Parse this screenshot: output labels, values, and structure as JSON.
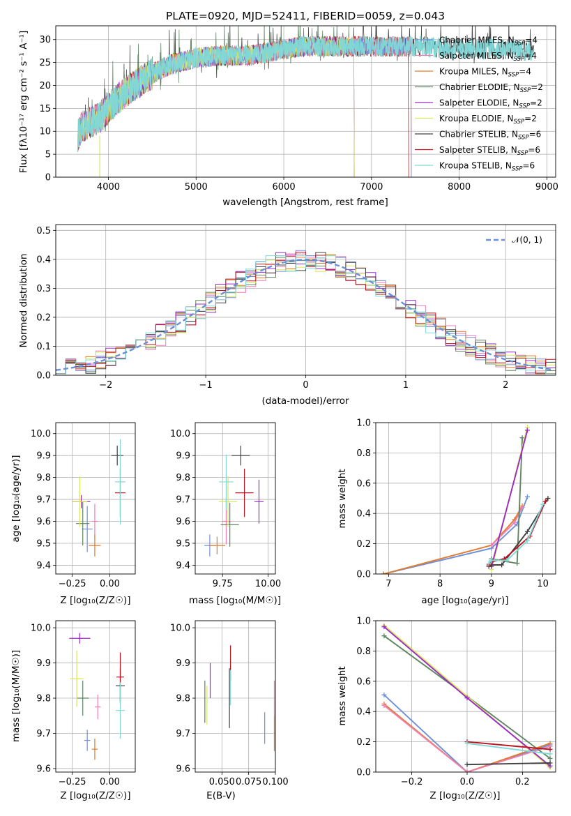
{
  "colors": {
    "chabrier_miles": "#6e8fdc",
    "salpeter_miles": "#f07fb3",
    "kroupa_miles": "#e07c2c",
    "chabrier_elodie": "#5e8661",
    "salpeter_elodie": "#9b2ac8",
    "kroupa_elodie": "#d8e85c",
    "chabrier_stelib": "#404040",
    "salpeter_stelib": "#c0121e",
    "kroupa_stelib": "#80d8d8",
    "normal": "#6b8fd8"
  },
  "chart_data": [
    {
      "type": "line",
      "title": "PLATE=0920, MJD=52411, FIBERID=0059, z=0.043",
      "xlabel": "wavelength [Angstrom, rest frame]",
      "ylabel": "Flux [fλ10⁻¹⁷ erg cm⁻² s⁻¹ A⁻¹]",
      "xlim": [
        3400,
        9100
      ],
      "ylim": [
        0,
        33
      ],
      "xticks": [
        "4000",
        "5000",
        "6000",
        "7000",
        "8000",
        "9000"
      ],
      "yticks": [
        "0",
        "5",
        "10",
        "15",
        "20",
        "25",
        "30"
      ],
      "legend_placement": "right",
      "series": [
        {
          "name": "Chabrier MILES, N_SSP=4",
          "color_key": "chabrier_miles",
          "x_range": [
            3650,
            7450
          ]
        },
        {
          "name": "Salpeter MILES, N_SSP=4",
          "color_key": "salpeter_miles",
          "x_range": [
            3650,
            7450
          ]
        },
        {
          "name": "Kroupa MILES, N_SSP=4",
          "color_key": "kroupa_miles",
          "x_range": [
            3650,
            7450
          ]
        },
        {
          "name": "Chabrier ELODIE, N_SSP=2",
          "color_key": "chabrier_elodie",
          "x_range": [
            3650,
            6800
          ]
        },
        {
          "name": "Salpeter ELODIE, N_SSP=2",
          "color_key": "salpeter_elodie",
          "x_range": [
            3650,
            6800
          ]
        },
        {
          "name": "Kroupa ELODIE, N_SSP=2",
          "color_key": "kroupa_elodie",
          "x_range": [
            3650,
            6800
          ]
        },
        {
          "name": "Chabrier STELIB, N_SSP=6",
          "color_key": "chabrier_stelib",
          "x_range": [
            3650,
            8850
          ]
        },
        {
          "name": "Salpeter STELIB, N_SSP=6",
          "color_key": "salpeter_stelib",
          "x_range": [
            3650,
            7420
          ]
        },
        {
          "name": "Kroupa STELIB, N_SSP=6",
          "color_key": "kroupa_stelib",
          "x_range": [
            3650,
            8850
          ]
        }
      ],
      "continuum": {
        "x": [
          3650,
          3700,
          3800,
          3900,
          4000,
          4100,
          4300,
          4500,
          4700,
          5000,
          5300,
          5600,
          5900,
          6200,
          6500,
          6800,
          7200,
          7600,
          8000,
          8400,
          8850
        ],
        "y": [
          9,
          11,
          12,
          13,
          15,
          17,
          20,
          22.5,
          24.5,
          26,
          26.5,
          26.5,
          27.5,
          28.5,
          28.5,
          28.5,
          28.5,
          28.5,
          28,
          28,
          27.5
        ]
      }
    },
    {
      "type": "line",
      "xlabel": "(data-model)/error",
      "ylabel": "Normed distribution",
      "xlim": [
        -2.5,
        2.5
      ],
      "ylim": [
        0,
        0.52
      ],
      "xticks": [
        "−2",
        "−1",
        "0",
        "1",
        "2"
      ],
      "yticks": [
        "0.0",
        "0.1",
        "0.2",
        "0.3",
        "0.4",
        "0.5"
      ],
      "legend": "𝒩(0, 1)",
      "legend_placement": "top-right",
      "bin_width": 0.1,
      "histograms": "nine step histograms following the standard normal density, one per fit"
    },
    {
      "type": "scatter",
      "xlabel": "Z [log₁₀(Z/Z☉)]",
      "ylabel": "age  [log₁₀(age/yr)]",
      "xlim": [
        -0.36,
        0.17
      ],
      "ylim": [
        9.36,
        10.05
      ],
      "xticks": [
        "−0.25",
        "0.00"
      ],
      "xtick_values": [
        -0.25,
        0.0
      ],
      "yticks": [
        "9.4",
        "9.5",
        "9.6",
        "9.7",
        "9.8",
        "9.9",
        "10.0"
      ],
      "points": [
        {
          "k": "chabrier_miles",
          "x": -0.15,
          "y": 9.565,
          "xe": 0.07,
          "ye": 0.21
        },
        {
          "k": "salpeter_miles",
          "x": -0.1,
          "y": 9.6,
          "xe": 0.04,
          "ye": 0.16
        },
        {
          "k": "kroupa_miles",
          "x": -0.1,
          "y": 9.49,
          "xe": 0.08,
          "ye": 0.1
        },
        {
          "k": "chabrier_elodie",
          "x": -0.18,
          "y": 9.59,
          "xe": 0.09,
          "ye": 0.2
        },
        {
          "k": "salpeter_elodie",
          "x": -0.19,
          "y": 9.69,
          "xe": 0.12,
          "ye": 0.06
        },
        {
          "k": "kroupa_elodie",
          "x": -0.2,
          "y": 9.69,
          "xe": 0.1,
          "ye": 0.23
        },
        {
          "k": "chabrier_stelib",
          "x": 0.05,
          "y": 9.9,
          "xe": 0.08,
          "ye": 0.09
        },
        {
          "k": "salpeter_stelib",
          "x": 0.07,
          "y": 9.73,
          "xe": 0.07,
          "ye": 0.22
        },
        {
          "k": "kroupa_stelib",
          "x": 0.07,
          "y": 9.78,
          "xe": 0.07,
          "ye": 0.39
        }
      ]
    },
    {
      "type": "scatter",
      "xlabel": "mass [log₁₀(M/M☉)]",
      "xlim": [
        9.6,
        10.04
      ],
      "ylim": [
        9.36,
        10.05
      ],
      "xticks": [
        "9.75",
        "10.00"
      ],
      "xtick_values": [
        9.75,
        10.0
      ],
      "yticks": [
        "9.4",
        "9.5",
        "9.6",
        "9.7",
        "9.8",
        "9.9",
        "10.0"
      ],
      "points": [
        {
          "k": "chabrier_miles",
          "x": 9.68,
          "y": 9.49,
          "xe": 0.06,
          "ye": 0.1
        },
        {
          "k": "salpeter_miles",
          "x": 9.77,
          "y": 9.6,
          "xe": 0.05,
          "ye": 0.21
        },
        {
          "k": "kroupa_miles",
          "x": 9.72,
          "y": 9.49,
          "xe": 0.09,
          "ye": 0.08
        },
        {
          "k": "chabrier_elodie",
          "x": 9.79,
          "y": 9.585,
          "xe": 0.1,
          "ye": 0.2
        },
        {
          "k": "salpeter_elodie",
          "x": 9.95,
          "y": 9.69,
          "xe": 0.05,
          "ye": 0.2
        },
        {
          "k": "kroupa_elodie",
          "x": 9.78,
          "y": 9.69,
          "xe": 0.1,
          "ye": 0.23
        },
        {
          "k": "chabrier_stelib",
          "x": 9.85,
          "y": 9.9,
          "xe": 0.1,
          "ye": 0.09
        },
        {
          "k": "salpeter_stelib",
          "x": 9.87,
          "y": 9.73,
          "xe": 0.1,
          "ye": 0.22
        },
        {
          "k": "kroupa_stelib",
          "x": 9.77,
          "y": 9.78,
          "xe": 0.08,
          "ye": 0.25
        }
      ]
    },
    {
      "type": "line",
      "xlabel": "age  [log₁₀(age/yr)]",
      "ylabel": "mass weight",
      "xlim": [
        6.75,
        10.25
      ],
      "ylim": [
        0,
        1.0
      ],
      "xticks": [
        "7",
        "8",
        "9",
        "10"
      ],
      "xtick_values": [
        7,
        8,
        9,
        10
      ],
      "yticks": [
        "0.0",
        "0.2",
        "0.4",
        "0.6",
        "0.8",
        "1.0"
      ],
      "series": [
        {
          "k": "chabrier_miles",
          "x": [
            6.9,
            9.0,
            9.5,
            9.7
          ],
          "y": [
            0.0,
            0.17,
            0.33,
            0.51
          ]
        },
        {
          "k": "kroupa_miles",
          "x": [
            6.9,
            9.0,
            9.45,
            9.6
          ],
          "y": [
            0.0,
            0.19,
            0.36,
            0.45
          ]
        },
        {
          "k": "salpeter_miles",
          "x": [
            9.0,
            9.45,
            9.6
          ],
          "y": [
            0.19,
            0.34,
            0.44
          ]
        },
        {
          "k": "chabrier_elodie",
          "x": [
            9.0,
            9.5,
            9.6
          ],
          "y": [
            0.1,
            0.07,
            0.9
          ]
        },
        {
          "k": "kroupa_elodie",
          "x": [
            9.0,
            9.7
          ],
          "y": [
            0.03,
            0.97
          ]
        },
        {
          "k": "salpeter_elodie",
          "x": [
            9.0,
            9.7
          ],
          "y": [
            0.05,
            0.95
          ]
        },
        {
          "k": "chabrier_stelib",
          "x": [
            8.95,
            9.0,
            9.2,
            9.7,
            10.1
          ],
          "y": [
            0.05,
            0.06,
            0.06,
            0.28,
            0.5
          ]
        },
        {
          "k": "salpeter_stelib",
          "x": [
            8.95,
            9.0,
            9.25,
            9.75,
            10.05
          ],
          "y": [
            0.06,
            0.08,
            0.1,
            0.25,
            0.48
          ]
        },
        {
          "k": "kroupa_stelib",
          "x": [
            8.95,
            9.0,
            9.3,
            9.7,
            10.0
          ],
          "y": [
            0.07,
            0.09,
            0.09,
            0.22,
            0.46
          ]
        }
      ]
    },
    {
      "type": "scatter",
      "xlabel": "Z [log₁₀(Z/Z☉)]",
      "ylabel": "mass [log₁₀(M/M☉)]",
      "xlim": [
        -0.36,
        0.17
      ],
      "ylim": [
        9.59,
        10.02
      ],
      "xticks": [
        "−0.25",
        "0.00"
      ],
      "xtick_values": [
        -0.25,
        0.0
      ],
      "yticks": [
        "9.6",
        "9.7",
        "9.8",
        "9.9",
        "10.0"
      ],
      "points": [
        {
          "k": "chabrier_miles",
          "x": -0.15,
          "y": 9.68,
          "xe": 0.04,
          "ye": 0.06
        },
        {
          "k": "salpeter_miles",
          "x": -0.08,
          "y": 9.775,
          "xe": 0.04,
          "ye": 0.07
        },
        {
          "k": "kroupa_miles",
          "x": -0.1,
          "y": 9.655,
          "xe": 0.04,
          "ye": 0.06
        },
        {
          "k": "chabrier_elodie",
          "x": -0.18,
          "y": 9.8,
          "xe": 0.08,
          "ye": 0.1
        },
        {
          "k": "salpeter_elodie",
          "x": -0.2,
          "y": 9.97,
          "xe": 0.14,
          "ye": 0.03
        },
        {
          "k": "kroupa_elodie",
          "x": -0.22,
          "y": 9.855,
          "xe": 0.09,
          "ye": 0.16
        },
        {
          "k": "chabrier_stelib",
          "x": 0.07,
          "y": 9.835,
          "xe": 0.06,
          "ye": 0.1
        },
        {
          "k": "salpeter_stelib",
          "x": 0.07,
          "y": 9.86,
          "xe": 0.05,
          "ye": 0.14
        },
        {
          "k": "kroupa_stelib",
          "x": 0.07,
          "y": 9.765,
          "xe": 0.06,
          "ye": 0.16
        }
      ]
    },
    {
      "type": "scatter",
      "xlabel": "E(B-V)",
      "xlim": [
        0.025,
        0.1
      ],
      "ylim": [
        9.59,
        10.02
      ],
      "xticks": [
        "0.050",
        "0.075",
        "0.100"
      ],
      "xtick_values": [
        0.05,
        0.075,
        0.1
      ],
      "yticks": [
        "9.6",
        "9.7",
        "9.8",
        "9.9",
        "10.0"
      ],
      "points": [
        {
          "k": "chabrier_miles",
          "x": 0.09,
          "y": 9.715,
          "xe": 0,
          "ye": 0.09
        },
        {
          "k": "salpeter_miles",
          "x": 0.099,
          "y": 9.8,
          "xe": 0,
          "ye": 0.1
        },
        {
          "k": "kroupa_miles",
          "x": 0.099,
          "y": 9.7,
          "xe": 0,
          "ye": 0.1
        },
        {
          "k": "chabrier_elodie",
          "x": 0.034,
          "y": 9.79,
          "xe": 0,
          "ye": 0.12
        },
        {
          "k": "salpeter_elodie",
          "x": 0.039,
          "y": 9.85,
          "xe": 0,
          "ye": 0.1
        },
        {
          "k": "kroupa_elodie",
          "x": 0.036,
          "y": 9.78,
          "xe": 0,
          "ye": 0.11
        },
        {
          "k": "chabrier_stelib",
          "x": 0.057,
          "y": 9.8,
          "xe": 0,
          "ye": 0.17
        },
        {
          "k": "salpeter_stelib",
          "x": 0.058,
          "y": 9.9,
          "xe": 0,
          "ye": 0.1
        },
        {
          "k": "kroupa_stelib",
          "x": 0.058,
          "y": 9.83,
          "xe": 0,
          "ye": 0.1
        }
      ]
    },
    {
      "type": "line",
      "xlabel": "Z [log₁₀(Z/Z☉)]",
      "ylabel": "mass weight",
      "xlim": [
        -0.33,
        0.32
      ],
      "ylim": [
        0,
        1.0
      ],
      "xticks": [
        "−0.2",
        "0.0",
        "0.2"
      ],
      "xtick_values": [
        -0.2,
        0.0,
        0.2
      ],
      "yticks": [
        "0.0",
        "0.2",
        "0.4",
        "0.6",
        "0.8",
        "1.0"
      ],
      "series": [
        {
          "k": "chabrier_miles",
          "x": [
            -0.3,
            0.0,
            0.3
          ],
          "y": [
            0.51,
            0.0,
            0.18
          ]
        },
        {
          "k": "kroupa_miles",
          "x": [
            -0.3,
            0.0,
            0.3
          ],
          "y": [
            0.45,
            0.0,
            0.19
          ]
        },
        {
          "k": "salpeter_miles",
          "x": [
            -0.3,
            0.0,
            0.3
          ],
          "y": [
            0.44,
            0.0,
            0.17
          ]
        },
        {
          "k": "chabrier_elodie",
          "x": [
            -0.3,
            0.0,
            0.3
          ],
          "y": [
            0.9,
            0.5,
            0.09
          ]
        },
        {
          "k": "kroupa_elodie",
          "x": [
            -0.3,
            0.0,
            0.3
          ],
          "y": [
            0.97,
            0.5,
            0.03
          ]
        },
        {
          "k": "salpeter_elodie",
          "x": [
            -0.3,
            0.0,
            0.3
          ],
          "y": [
            0.96,
            0.49,
            0.04
          ]
        },
        {
          "k": "chabrier_stelib",
          "x": [
            0.0,
            0.3
          ],
          "y": [
            0.05,
            0.06
          ]
        },
        {
          "k": "salpeter_stelib",
          "x": [
            0.0,
            0.3
          ],
          "y": [
            0.2,
            0.15
          ]
        },
        {
          "k": "kroupa_stelib",
          "x": [
            0.0,
            0.3
          ],
          "y": [
            0.19,
            0.12
          ]
        }
      ]
    }
  ]
}
